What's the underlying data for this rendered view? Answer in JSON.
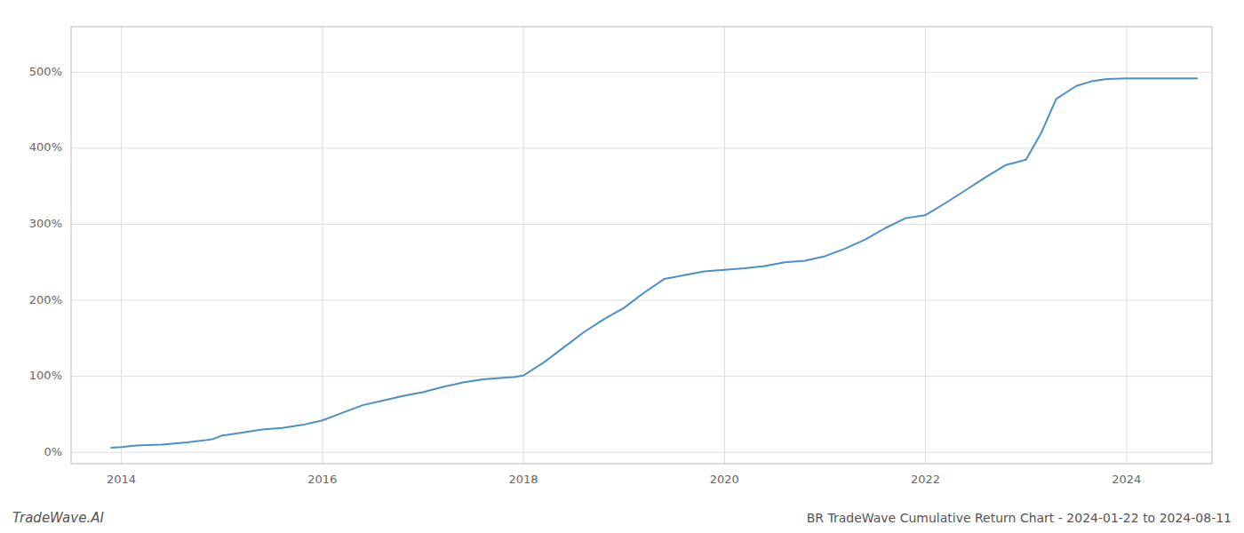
{
  "chart_data": {
    "type": "line",
    "title": "BR TradeWave Cumulative Return Chart - 2024-01-22 to 2024-08-11",
    "annotations": [
      "TradeWave.AI"
    ],
    "color": "#4a90c4",
    "grid": true,
    "xlim": [
      2013.5,
      2024.85
    ],
    "ylim": [
      -0.15,
      5.6
    ],
    "xticks": [
      2014,
      2016,
      2018,
      2020,
      2022,
      2024
    ],
    "yticks": [
      {
        "value": 0.0,
        "label": "0%"
      },
      {
        "value": 1.0,
        "label": "100%"
      },
      {
        "value": 2.0,
        "label": "200%"
      },
      {
        "value": 3.0,
        "label": "300%"
      },
      {
        "value": 4.0,
        "label": "400%"
      },
      {
        "value": 5.0,
        "label": "500%"
      }
    ],
    "x": [
      2013.9,
      2014.0,
      2014.15,
      2014.4,
      2014.65,
      2014.9,
      2015.0,
      2015.2,
      2015.4,
      2015.6,
      2015.8,
      2016.0,
      2016.2,
      2016.4,
      2016.6,
      2016.8,
      2017.0,
      2017.2,
      2017.4,
      2017.6,
      2017.8,
      2017.9,
      2018.0,
      2018.2,
      2018.4,
      2018.6,
      2018.8,
      2019.0,
      2019.2,
      2019.4,
      2019.6,
      2019.8,
      2020.0,
      2020.2,
      2020.4,
      2020.6,
      2020.8,
      2021.0,
      2021.2,
      2021.4,
      2021.6,
      2021.8,
      2022.0,
      2022.2,
      2022.4,
      2022.6,
      2022.8,
      2023.0,
      2023.15,
      2023.3,
      2023.5,
      2023.65,
      2023.8,
      2024.0,
      2024.2,
      2024.5,
      2024.7
    ],
    "values": [
      0.06,
      0.07,
      0.09,
      0.1,
      0.13,
      0.17,
      0.22,
      0.26,
      0.3,
      0.32,
      0.36,
      0.42,
      0.52,
      0.62,
      0.68,
      0.74,
      0.79,
      0.86,
      0.92,
      0.96,
      0.98,
      0.99,
      1.01,
      1.18,
      1.38,
      1.58,
      1.75,
      1.9,
      2.1,
      2.28,
      2.33,
      2.38,
      2.4,
      2.42,
      2.45,
      2.5,
      2.52,
      2.58,
      2.68,
      2.8,
      2.95,
      3.08,
      3.12,
      3.28,
      3.45,
      3.62,
      3.78,
      3.85,
      4.2,
      4.65,
      4.82,
      4.88,
      4.91,
      4.92,
      4.92,
      4.92,
      4.92
    ]
  }
}
